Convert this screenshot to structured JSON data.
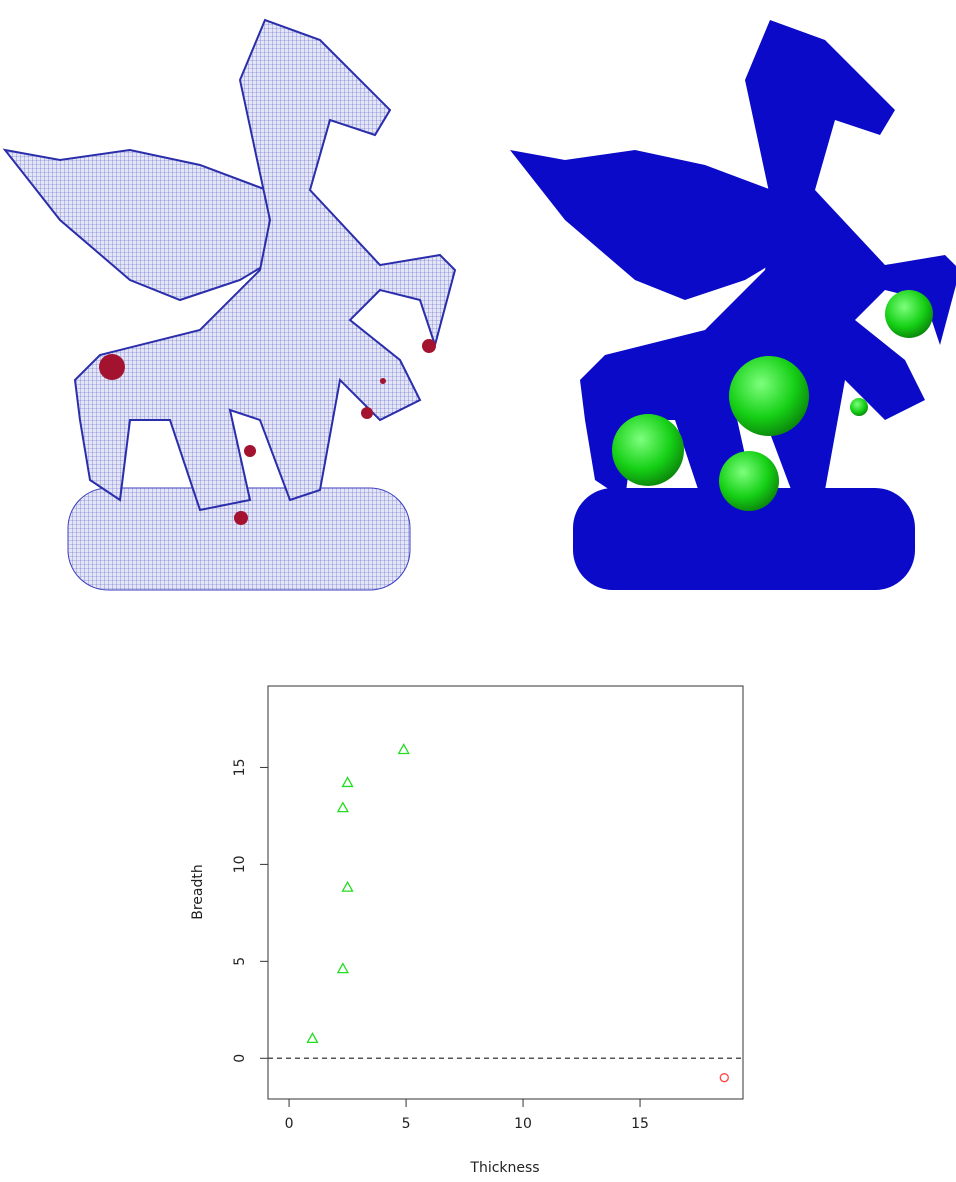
{
  "chart_data": {
    "type": "scatter",
    "xlabel": "Thickness",
    "ylabel": "Breadth",
    "xlim": [
      -0.9,
      19.4
    ],
    "ylim": [
      -2.1,
      19.2
    ],
    "xticks": [
      0,
      5,
      10,
      15
    ],
    "yticks": [
      0,
      5,
      10,
      15
    ],
    "hline": 0,
    "series": [
      {
        "color": "#22dd22",
        "marker": "triangle",
        "x": [
          1.0,
          2.3,
          2.5,
          2.3,
          2.5,
          4.9
        ],
        "y": [
          1.0,
          4.6,
          8.8,
          12.9,
          14.2,
          15.9
        ]
      },
      {
        "color": "#ff4444",
        "marker": "circle",
        "x": [
          18.6
        ],
        "y": [
          -1.0
        ]
      }
    ]
  }
}
